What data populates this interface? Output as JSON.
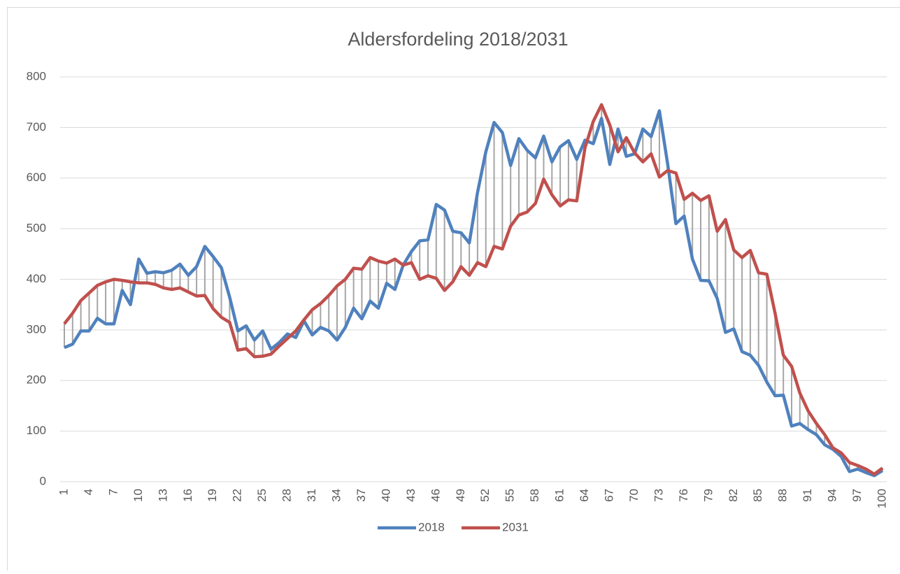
{
  "chart_data": {
    "type": "line",
    "title": "Aldersfordeling 2018/2031",
    "categories": [
      "1",
      null,
      null,
      "4",
      null,
      null,
      "7",
      null,
      null,
      "10",
      null,
      null,
      "13",
      null,
      null,
      "16",
      null,
      null,
      "19",
      null,
      null,
      "22",
      null,
      null,
      "25",
      null,
      null,
      "28",
      null,
      null,
      "31",
      null,
      null,
      "34",
      null,
      null,
      "37",
      null,
      null,
      "40",
      null,
      null,
      "43",
      null,
      null,
      "46",
      null,
      null,
      "49",
      null,
      null,
      "52",
      null,
      null,
      "55",
      null,
      null,
      "58",
      null,
      null,
      "61",
      null,
      null,
      "64",
      null,
      null,
      "67",
      null,
      null,
      "70",
      null,
      null,
      "73",
      null,
      null,
      "76",
      null,
      null,
      "79",
      null,
      null,
      "82",
      null,
      null,
      "85",
      null,
      null,
      "88",
      null,
      null,
      "91",
      null,
      null,
      "94",
      null,
      null,
      "97",
      null,
      null,
      "100"
    ],
    "series": [
      {
        "name": "2018",
        "color": "#4f81bd",
        "values": [
          265,
          272,
          298,
          298,
          323,
          312,
          312,
          378,
          350,
          440,
          412,
          415,
          413,
          418,
          430,
          408,
          425,
          465,
          445,
          423,
          365,
          298,
          308,
          280,
          298,
          262,
          275,
          292,
          285,
          318,
          290,
          305,
          298,
          280,
          305,
          343,
          322,
          357,
          343,
          392,
          380,
          428,
          455,
          476,
          478,
          548,
          537,
          495,
          492,
          472,
          572,
          652,
          710,
          690,
          625,
          678,
          655,
          640,
          683,
          632,
          662,
          674,
          637,
          675,
          668,
          718,
          627,
          697,
          643,
          648,
          697,
          682,
          733,
          628,
          510,
          525,
          440,
          398,
          397,
          362,
          295,
          302,
          257,
          250,
          230,
          197,
          170,
          171,
          110,
          115,
          103,
          93,
          73,
          64,
          50,
          20,
          25,
          18,
          12,
          22
        ]
      },
      {
        "name": "2031",
        "color": "#c0504d",
        "values": [
          312,
          333,
          358,
          373,
          388,
          395,
          400,
          398,
          395,
          393,
          393,
          390,
          383,
          380,
          383,
          375,
          367,
          368,
          342,
          325,
          315,
          260,
          263,
          247,
          248,
          252,
          268,
          283,
          298,
          320,
          340,
          352,
          368,
          387,
          400,
          422,
          420,
          443,
          436,
          432,
          440,
          428,
          433,
          400,
          407,
          402,
          378,
          395,
          425,
          408,
          433,
          425,
          465,
          460,
          505,
          527,
          533,
          550,
          598,
          567,
          545,
          557,
          555,
          660,
          712,
          745,
          705,
          652,
          680,
          650,
          632,
          648,
          602,
          615,
          610,
          558,
          570,
          556,
          565,
          495,
          518,
          458,
          443,
          457,
          413,
          410,
          333,
          250,
          228,
          175,
          140,
          115,
          93,
          67,
          57,
          38,
          32,
          25,
          15,
          27
        ]
      }
    ],
    "high_low_lines": true,
    "high_low_color": "#a5a5a5",
    "ylim": [
      0,
      800
    ],
    "yticks": [
      0,
      100,
      200,
      300,
      400,
      500,
      600,
      700,
      800
    ],
    "grid": true,
    "legend": "bottom"
  }
}
